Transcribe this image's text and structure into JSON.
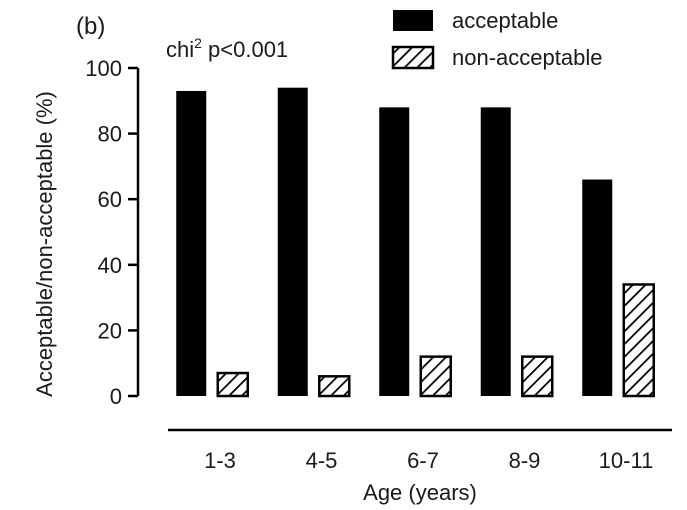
{
  "panel_label": "(b)",
  "annotation": {
    "prefix": "chi",
    "superscript": "2",
    "suffix": " p<0.001"
  },
  "chart_data": {
    "type": "bar",
    "xlabel": "Age (years)",
    "ylabel": "Acceptable/non-acceptable (%)",
    "ylim": [
      0,
      100
    ],
    "yticks": [
      "0",
      "20",
      "40",
      "60",
      "80",
      "100"
    ],
    "categories": [
      "1-3",
      "4-5",
      "6-7",
      "8-9",
      "10-11"
    ],
    "series": [
      {
        "name": "acceptable",
        "values": [
          93,
          94,
          88,
          88,
          66
        ],
        "fill": "solid",
        "color": "#000000"
      },
      {
        "name": "non-acceptable",
        "values": [
          7,
          6,
          12,
          12,
          34
        ],
        "fill": "hatched",
        "color": "#000000"
      }
    ],
    "legend": "top-right",
    "grid": false
  }
}
